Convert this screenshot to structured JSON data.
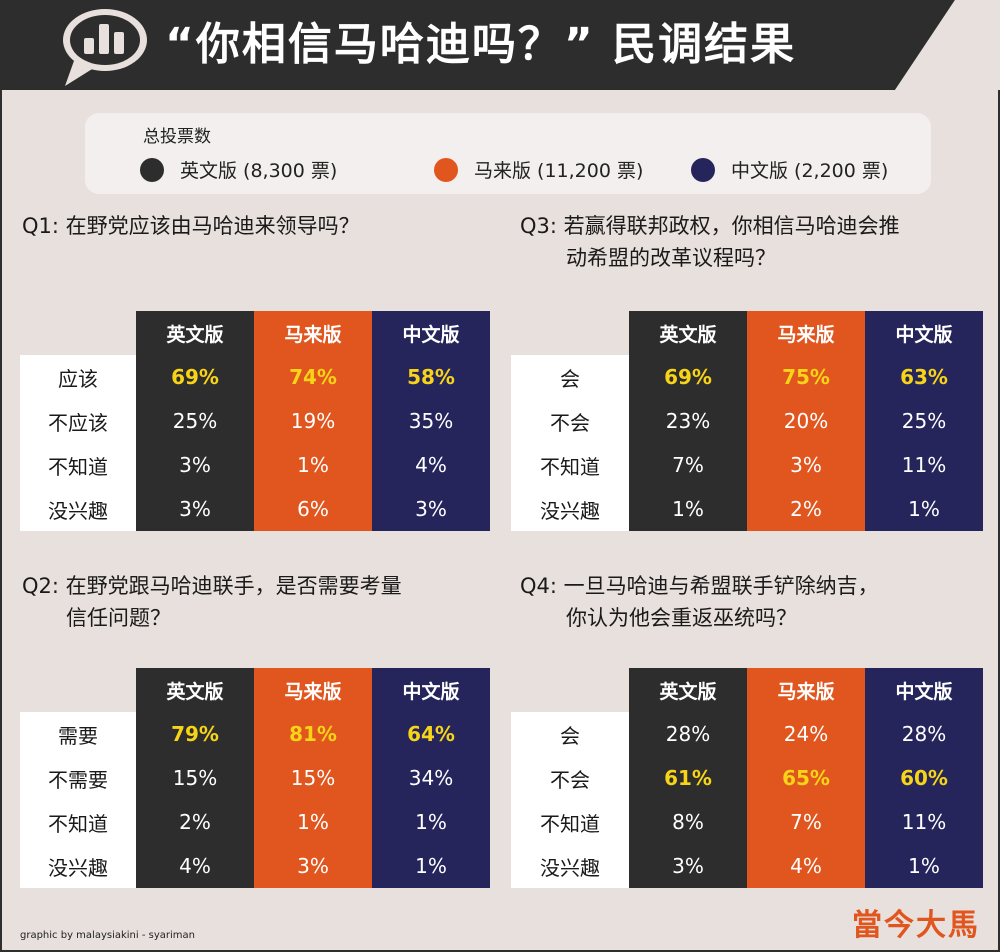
{
  "header": {
    "title": "“你相信马哈迪吗？” 民调结果",
    "icon": "bar-chart-speech-bubble-icon"
  },
  "legend": {
    "title": "总投票数",
    "items": [
      {
        "label": "英文版 (8,300 票)",
        "color": "#2d2d2d"
      },
      {
        "label": "马来版 (11,200 票)",
        "color": "#e0561e"
      },
      {
        "label": "中文版 (2,200 票)",
        "color": "#25255c"
      }
    ]
  },
  "colors": {
    "english": "#2d2d2d",
    "malay": "#e0561e",
    "chinese": "#25255c",
    "highlight": "#f7d417",
    "background": "#e8e0dc"
  },
  "chart_data": [
    {
      "type": "table",
      "title": "Q1: 在野党应该由马哈迪来领导吗？",
      "title_line2": "",
      "columns": [
        "英文版",
        "马来版",
        "中文版"
      ],
      "rows": [
        {
          "label": "应该",
          "values": [
            "69%",
            "74%",
            "58%"
          ],
          "highlight": true
        },
        {
          "label": "不应该",
          "values": [
            "25%",
            "19%",
            "35%"
          ],
          "highlight": false
        },
        {
          "label": "不知道",
          "values": [
            "3%",
            "1%",
            "4%"
          ],
          "highlight": false
        },
        {
          "label": "没兴趣",
          "values": [
            "3%",
            "6%",
            "3%"
          ],
          "highlight": false
        }
      ]
    },
    {
      "type": "table",
      "title": "Q2: 在野党跟马哈迪联手，是否需要考量",
      "title_line2": "信任问题？",
      "columns": [
        "英文版",
        "马来版",
        "中文版"
      ],
      "rows": [
        {
          "label": "需要",
          "values": [
            "79%",
            "81%",
            "64%"
          ],
          "highlight": true
        },
        {
          "label": "不需要",
          "values": [
            "15%",
            "15%",
            "34%"
          ],
          "highlight": false
        },
        {
          "label": "不知道",
          "values": [
            "2%",
            "1%",
            "1%"
          ],
          "highlight": false
        },
        {
          "label": "没兴趣",
          "values": [
            "4%",
            "3%",
            "1%"
          ],
          "highlight": false
        }
      ]
    },
    {
      "type": "table",
      "title": "Q3: 若赢得联邦政权，你相信马哈迪会推",
      "title_line2": "动希盟的改革议程吗？",
      "columns": [
        "英文版",
        "马来版",
        "中文版"
      ],
      "rows": [
        {
          "label": "会",
          "values": [
            "69%",
            "75%",
            "63%"
          ],
          "highlight": true
        },
        {
          "label": "不会",
          "values": [
            "23%",
            "20%",
            "25%"
          ],
          "highlight": false
        },
        {
          "label": "不知道",
          "values": [
            "7%",
            "3%",
            "11%"
          ],
          "highlight": false
        },
        {
          "label": "没兴趣",
          "values": [
            "1%",
            "2%",
            "1%"
          ],
          "highlight": false
        }
      ]
    },
    {
      "type": "table",
      "title": "Q4: 一旦马哈迪与希盟联手铲除纳吉，",
      "title_line2": "你认为他会重返巫统吗？",
      "columns": [
        "英文版",
        "马来版",
        "中文版"
      ],
      "rows": [
        {
          "label": "会",
          "values": [
            "28%",
            "24%",
            "28%"
          ],
          "highlight": false
        },
        {
          "label": "不会",
          "values": [
            "61%",
            "65%",
            "60%"
          ],
          "highlight": true
        },
        {
          "label": "不知道",
          "values": [
            "8%",
            "7%",
            "11%"
          ],
          "highlight": false
        },
        {
          "label": "没兴趣",
          "values": [
            "3%",
            "4%",
            "1%"
          ],
          "highlight": false
        }
      ]
    }
  ],
  "footer": {
    "credit": "graphic by malaysiakini - syariman",
    "logo": "當今大馬"
  }
}
